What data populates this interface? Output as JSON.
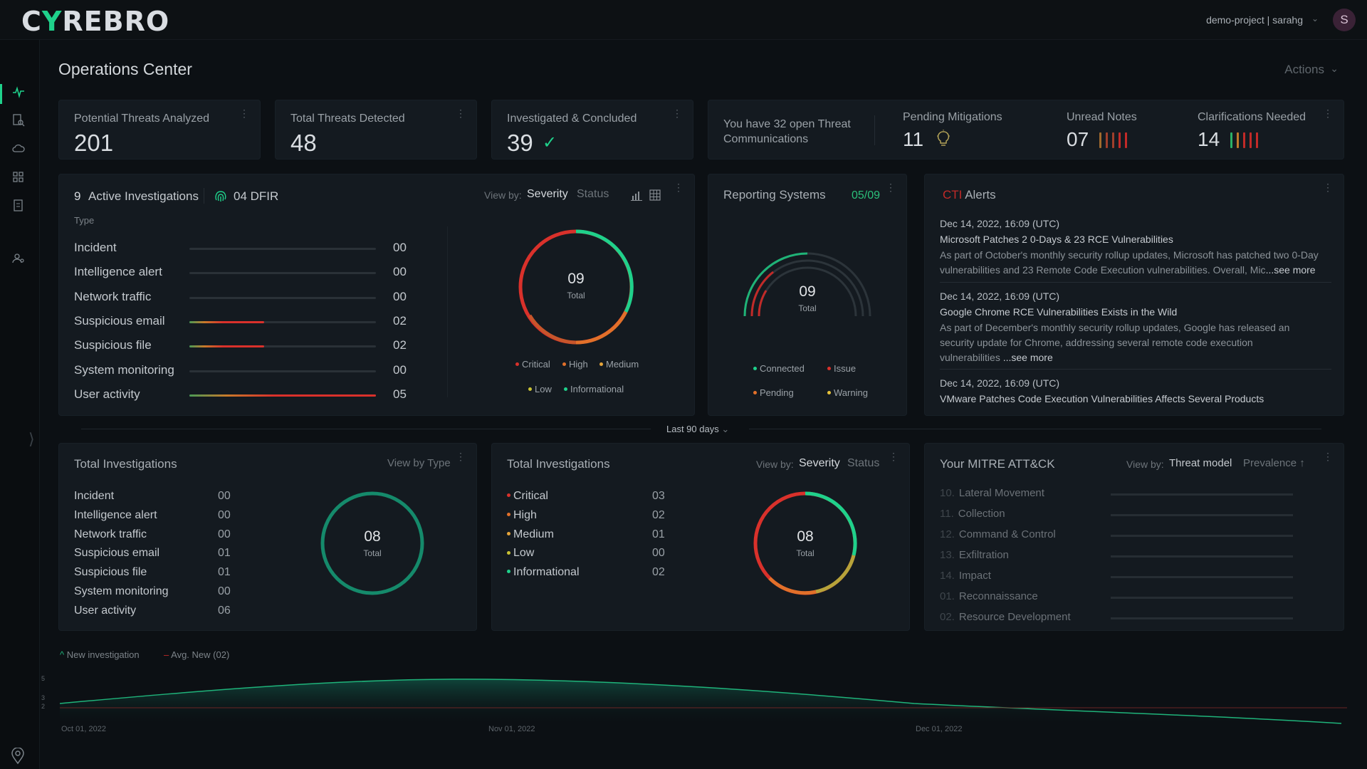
{
  "app": {
    "logo_prefix": "C",
    "logo_y": "Y",
    "logo_suffix": "REBRO",
    "project": "demo-project | sarahg",
    "avatar": "S"
  },
  "sidebar": {
    "icons": [
      "pulse-icon",
      "report-search-icon",
      "cloud-icon",
      "grid-icon",
      "document-icon",
      "user-gear-icon"
    ]
  },
  "page": {
    "title": "Operations Center",
    "actions": "Actions"
  },
  "stats": {
    "potential": {
      "label": "Potential Threats Analyzed",
      "value": "201"
    },
    "total": {
      "label": "Total Threats Detected",
      "value": "48"
    },
    "investigated": {
      "label": "Investigated & Concluded",
      "value": "39"
    }
  },
  "communications": {
    "open": "You have 32 open Threat Communications",
    "pending_label": "Pending Mitigations",
    "pending_value": "11",
    "unread_label": "Unread Notes",
    "unread_value": "07",
    "clar_label": "Clarifications Needed",
    "clar_value": "14"
  },
  "active": {
    "count": "9",
    "title": "Active Investigations",
    "dfir": "04 DFIR",
    "type_label": "Type",
    "view_by": "View by:",
    "severity": "Severity",
    "status": "Status",
    "rows": [
      {
        "label": "Incident",
        "value": "00",
        "level": 0
      },
      {
        "label": "Intelligence alert",
        "value": "00",
        "level": 0
      },
      {
        "label": "Network traffic",
        "value": "00",
        "level": 0
      },
      {
        "label": "Suspicious email",
        "value": "02",
        "level": 0.4
      },
      {
        "label": "Suspicious file",
        "value": "02",
        "level": 0.4
      },
      {
        "label": "System monitoring",
        "value": "00",
        "level": 0
      },
      {
        "label": "User activity",
        "value": "05",
        "level": 1.0
      }
    ],
    "donut_total": "09",
    "donut_label": "Total",
    "legend": [
      "Critical",
      "High",
      "Medium",
      "Low",
      "Informational"
    ]
  },
  "reporting": {
    "title": "Reporting Systems",
    "ratio": "05/09",
    "total": "09",
    "total_label": "Total",
    "legend": [
      "Connected",
      "Issue",
      "Pending",
      "Warning"
    ]
  },
  "cti": {
    "prefix": "CTI",
    "title": "Alerts",
    "alerts": [
      {
        "date": "Dec 14, 2022, 16:09 (UTC)",
        "title": "Microsoft Patches 2 0-Days & 23 RCE Vulnerabilities",
        "body": "As part of October's monthly security rollup updates, Microsoft has patched two 0-Day vulnerabilities and 23 Remote Code Execution vulnerabilities. Overall, Mic",
        "more": "...see more"
      },
      {
        "date": "Dec 14, 2022, 16:09 (UTC)",
        "title": "Google Chrome RCE Vulnerabilities Exists in the Wild",
        "body": "As part of December's monthly security rollup updates, Google has released an security update for Chrome, addressing several remote code execution vulnerabilities",
        "more": " ...see more"
      },
      {
        "date": "Dec 14, 2022, 16:09 (UTC)",
        "title": "VMware Patches Code Execution Vulnerabilities Affects Several Products",
        "body": "",
        "more": ""
      }
    ]
  },
  "period": "Last 90 days",
  "total_by_type": {
    "title": "Total Investigations",
    "view_by": "View by Type",
    "rows": [
      {
        "label": "Incident",
        "value": "00"
      },
      {
        "label": "Intelligence alert",
        "value": "00"
      },
      {
        "label": "Network traffic",
        "value": "00"
      },
      {
        "label": "Suspicious email",
        "value": "01"
      },
      {
        "label": "Suspicious file",
        "value": "01"
      },
      {
        "label": "System monitoring",
        "value": "00"
      },
      {
        "label": "User activity",
        "value": "06"
      }
    ],
    "total": "08",
    "total_label": "Total"
  },
  "total_by_severity": {
    "title": "Total Investigations",
    "view_by": "View by:",
    "severity": "Severity",
    "status": "Status",
    "rows": [
      {
        "label": "Critical",
        "value": "03",
        "color": "#d9312b"
      },
      {
        "label": "High",
        "value": "02",
        "color": "#e2702a"
      },
      {
        "label": "Medium",
        "value": "01",
        "color": "#e6a53a"
      },
      {
        "label": "Low",
        "value": "00",
        "color": "#c9c233"
      },
      {
        "label": "Informational",
        "value": "02",
        "color": "#1fd18b"
      }
    ],
    "total": "08",
    "total_label": "Total"
  },
  "mitre": {
    "title": "Your MITRE ATT&CK",
    "view_by": "View by:",
    "threat_model": "Threat model",
    "prevalence": "Prevalence",
    "rows": [
      {
        "num": "10.",
        "label": "Lateral Movement"
      },
      {
        "num": "11.",
        "label": "Collection"
      },
      {
        "num": "12.",
        "label": "Command & Control"
      },
      {
        "num": "13.",
        "label": "Exfiltration"
      },
      {
        "num": "14.",
        "label": "Impact"
      },
      {
        "num": "01.",
        "label": "Reconnaissance"
      },
      {
        "num": "02.",
        "label": "Resource Development"
      }
    ]
  },
  "trend": {
    "legend_new": "New investigation",
    "legend_avg": "Avg. New (02)",
    "x_labels": [
      "Oct 01, 2022",
      "Nov 01, 2022",
      "Dec 01, 2022"
    ],
    "y_labels": [
      "5",
      "3",
      "2"
    ]
  }
}
